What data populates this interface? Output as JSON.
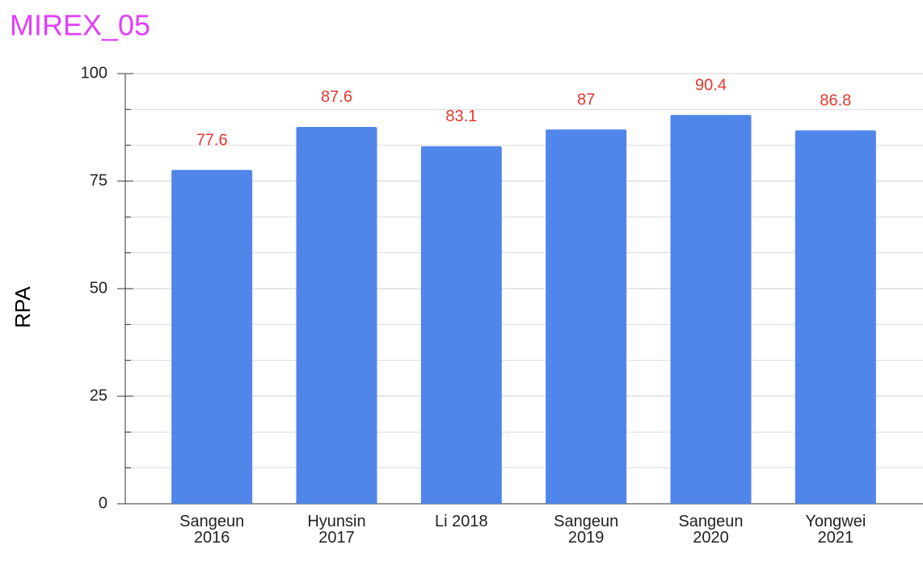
{
  "chart_data": {
    "type": "bar",
    "title": "MIREX_05",
    "y_label": "RPA",
    "categories": [
      "Sangeun 2016",
      "Hyunsin 2017",
      "Li 2018",
      "Sangeun 2019",
      "Sangeun 2020",
      "Yongwei 2021"
    ],
    "values": [
      77.6,
      87.6,
      83.1,
      87,
      90.4,
      86.8
    ],
    "color": "#5086ea",
    "label_color": "#e2382f",
    "title_color": "#e040fb",
    "ylim": [
      0,
      100
    ],
    "yticks": [
      0,
      25,
      50,
      75,
      100
    ],
    "grid": true,
    "minor_grid": true
  }
}
